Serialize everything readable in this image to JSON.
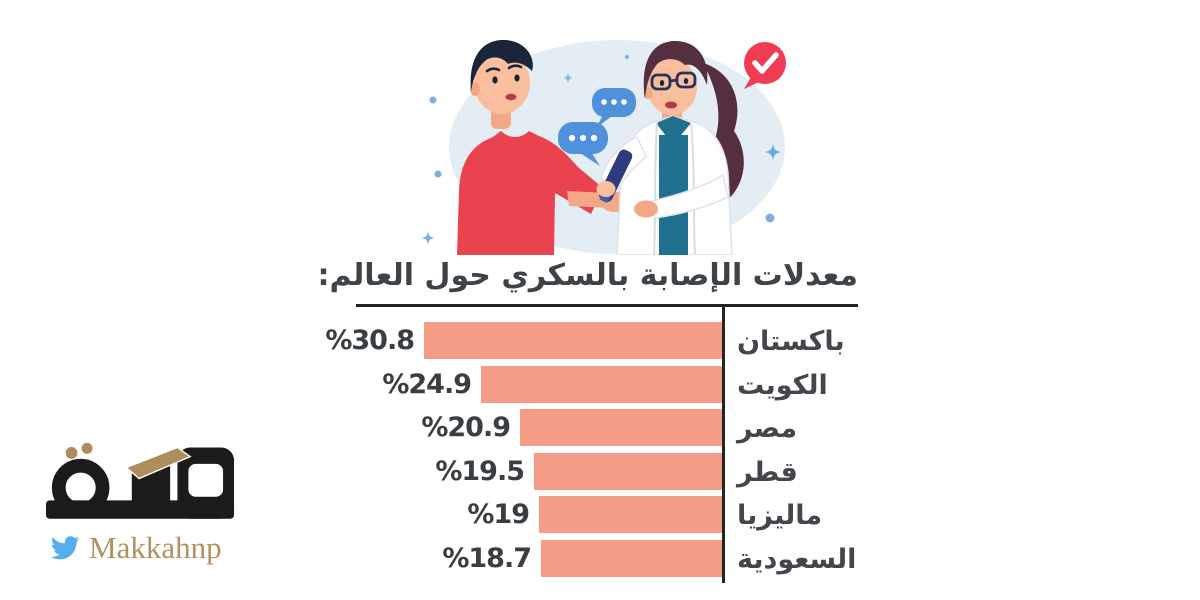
{
  "logo": {
    "wordmark": "مكة",
    "handle": "Makkahnp",
    "wordmark_color": "#1b1b1b",
    "gold_accent": "#ae8d5c",
    "twitter_blue": "#55acee",
    "handle_color": "#b3905e"
  },
  "illustration": {
    "alt": "طبيبة تجري فحص سكر الدم بوخز إصبع مريض",
    "background_color": "#e4edf4",
    "speech_bubble_color": "#5191dc",
    "check_badge_color": "#ef3c52",
    "shirt_red": "#e8434e",
    "coat_white": "#ffffff",
    "scrub_teal": "#20718f",
    "sparkle_blue": "#7faee2"
  },
  "chart_data": {
    "type": "bar",
    "orientation": "horizontal-rtl",
    "title": "معدلات الإصابة بالسكري حول العالم:",
    "categories": [
      "باكستان",
      "الكويت",
      "مصر",
      "قطر",
      "ماليزيا",
      "السعودية"
    ],
    "values": [
      30.8,
      24.9,
      20.9,
      19.5,
      19,
      18.7
    ],
    "value_labels": [
      "%30.8",
      "%24.9",
      "%20.9",
      "%19.5",
      "%19",
      "%18.7"
    ],
    "xlim": [
      0,
      30.8
    ],
    "grid": false,
    "legend": false,
    "bar_color": "#f59c88",
    "axis_color": "#232323",
    "label_color": "#43474c",
    "value_color": "#393e43",
    "title_color": "#3e4347"
  }
}
